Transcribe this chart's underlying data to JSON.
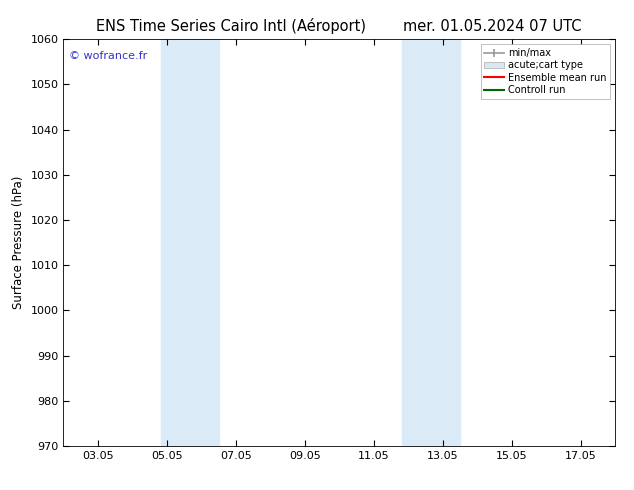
{
  "title_left": "ENS Time Series Cairo Intl (Aéroport)",
  "title_right": "mer. 01.05.2024 07 UTC",
  "ylabel": "Surface Pressure (hPa)",
  "ylim": [
    970,
    1060
  ],
  "yticks": [
    970,
    980,
    990,
    1000,
    1010,
    1020,
    1030,
    1040,
    1050,
    1060
  ],
  "xtick_labels": [
    "03.05",
    "05.05",
    "07.05",
    "09.05",
    "11.05",
    "13.05",
    "15.05",
    "17.05"
  ],
  "xtick_positions": [
    2,
    4,
    6,
    8,
    10,
    12,
    14,
    16
  ],
  "xlim": [
    1,
    17
  ],
  "shaded_regions": [
    {
      "xmin": 3.83,
      "xmax": 4.5,
      "color": "#daeaf7"
    },
    {
      "xmin": 4.5,
      "xmax": 5.5,
      "color": "#daeaf7"
    },
    {
      "xmin": 10.83,
      "xmax": 11.5,
      "color": "#daeaf7"
    },
    {
      "xmin": 11.5,
      "xmax": 12.5,
      "color": "#daeaf7"
    }
  ],
  "watermark": "© wofrance.fr",
  "watermark_color": "#3333cc",
  "bg_color": "#ffffff",
  "title_fontsize": 10.5,
  "label_fontsize": 8.5,
  "tick_fontsize": 8
}
